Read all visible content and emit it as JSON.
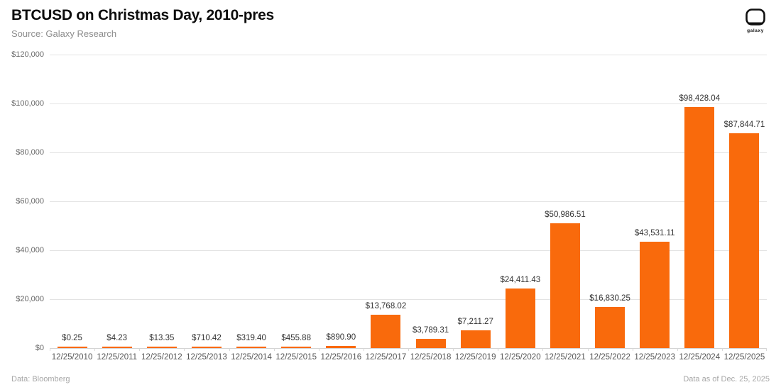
{
  "header": {
    "title": "BTCUSD on Christmas Day, 2010-pres",
    "subtitle": "Source: Galaxy Research",
    "logo_text": "galaxy"
  },
  "footer": {
    "left": "Data: Bloomberg",
    "right": "Data as of Dec. 25, 2025"
  },
  "colors": {
    "bar": "#f96a0c",
    "grid": "#e3e3e3",
    "axis_text": "#666666",
    "value_label_text": "#333333",
    "subtitle_text": "#8d8d8d"
  },
  "chart_data": {
    "type": "bar",
    "title": "BTCUSD on Christmas Day, 2010-pres",
    "subtitle": "Source: Galaxy Research",
    "xlabel": "",
    "ylabel": "",
    "ylim": [
      0,
      120000
    ],
    "grid": true,
    "legend": false,
    "categories": [
      "12/25/2010",
      "12/25/2011",
      "12/25/2012",
      "12/25/2013",
      "12/25/2014",
      "12/25/2015",
      "12/25/2016",
      "12/25/2017",
      "12/25/2018",
      "12/25/2019",
      "12/25/2020",
      "12/25/2021",
      "12/25/2022",
      "12/25/2023",
      "12/25/2024",
      "12/25/2025"
    ],
    "values": [
      0.25,
      4.23,
      13.35,
      710.42,
      319.4,
      455.88,
      890.9,
      13768.02,
      3789.31,
      7211.27,
      24411.43,
      50986.51,
      16830.25,
      43531.11,
      98428.04,
      87844.71
    ],
    "value_labels": [
      "$0.25",
      "$4.23",
      "$13.35",
      "$710.42",
      "$319.40",
      "$455.88",
      "$890.90",
      "$13,768.02",
      "$3,789.31",
      "$7,211.27",
      "$24,411.43",
      "$50,986.51",
      "$16,830.25",
      "$43,531.11",
      "$98,428.04",
      "$87,844.71"
    ],
    "y_ticks": [
      "$0",
      "$20,000",
      "$40,000",
      "$60,000",
      "$80,000",
      "$100,000",
      "$120,000"
    ]
  }
}
